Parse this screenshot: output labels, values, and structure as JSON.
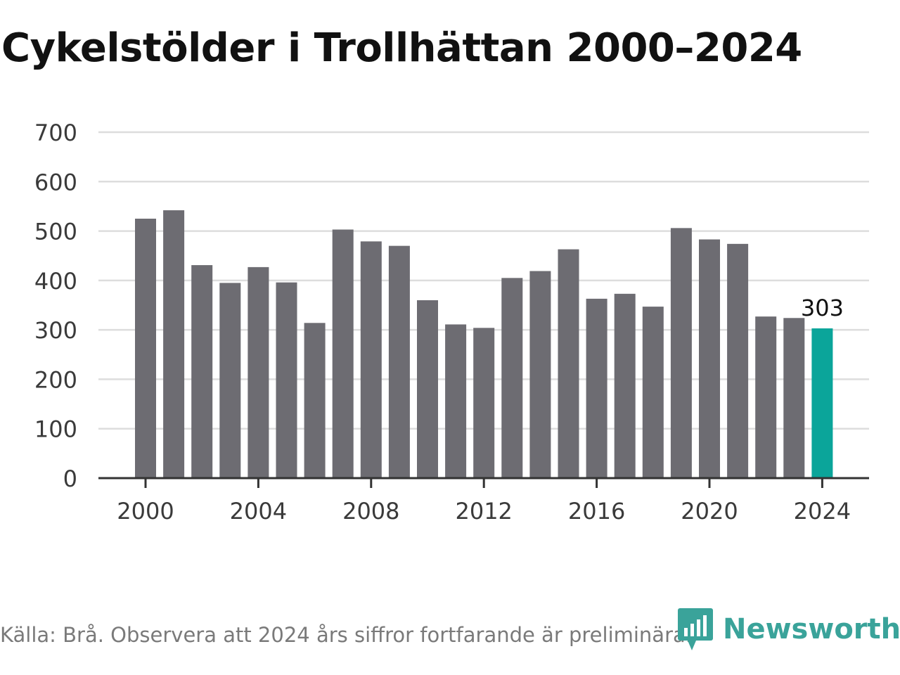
{
  "chart_data": {
    "type": "bar",
    "title": "Cykelstölder i Trollhättan 2000–2024",
    "x": [
      2000,
      2001,
      2002,
      2003,
      2004,
      2005,
      2006,
      2007,
      2008,
      2009,
      2010,
      2011,
      2012,
      2013,
      2014,
      2015,
      2016,
      2017,
      2018,
      2019,
      2020,
      2021,
      2022,
      2023,
      2024
    ],
    "values": [
      525,
      542,
      431,
      395,
      427,
      396,
      314,
      503,
      479,
      470,
      360,
      311,
      304,
      405,
      419,
      463,
      363,
      373,
      347,
      506,
      483,
      474,
      327,
      324,
      303
    ],
    "xticks": [
      "2000",
      "2004",
      "2008",
      "2012",
      "2016",
      "2020",
      "2024"
    ],
    "yticks": [
      "0",
      "100",
      "200",
      "300",
      "400",
      "500",
      "600",
      "700"
    ],
    "ylim": [
      0,
      700
    ],
    "xlabel": "",
    "ylabel": "",
    "grid": true,
    "bar_color": "#6d6c72",
    "highlight_color": "#0ba59a",
    "highlight_label": "303"
  },
  "footer": {
    "source": "Källa: Brå. Observera att 2024 års siffror fortfarande är preliminära.",
    "brand": "Newsworthy",
    "brand_icon": "newsworthy-logo-icon",
    "brand_color": "#3aa39a"
  }
}
